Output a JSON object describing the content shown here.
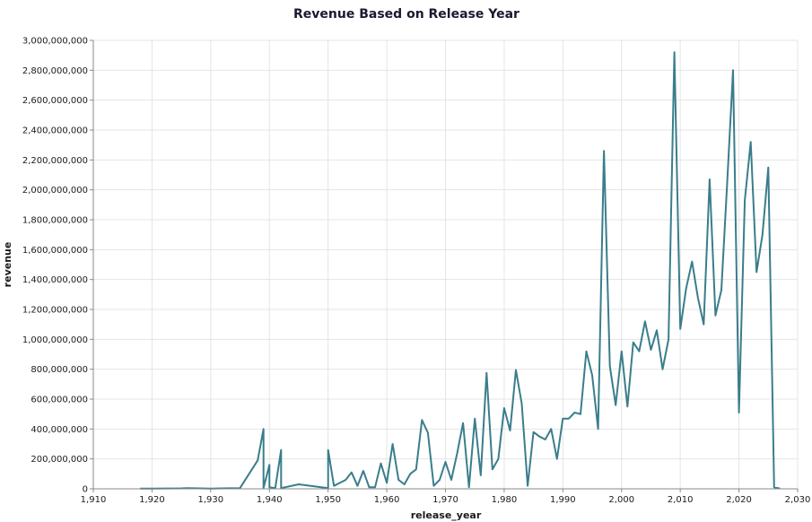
{
  "chart_data": {
    "type": "line",
    "title": "Revenue Based on Release Year",
    "xlabel": "release_year",
    "ylabel": "revenue",
    "xlim": [
      1910,
      2030
    ],
    "ylim": [
      0,
      3000000000
    ],
    "x_ticks": [
      "1,910",
      "1,920",
      "1,930",
      "1,940",
      "1,950",
      "1,960",
      "1,970",
      "1,980",
      "1,990",
      "2,000",
      "2,010",
      "2,020",
      "2,030"
    ],
    "y_ticks": [
      "0",
      "200,000,000",
      "400,000,000",
      "600,000,000",
      "800,000,000",
      "1,000,000,000",
      "1,200,000,000",
      "1,400,000,000",
      "1,600,000,000",
      "1,800,000,000",
      "2,000,000,000",
      "2,200,000,000",
      "2,400,000,000",
      "2,600,000,000",
      "2,800,000,000",
      "3,000,000,000"
    ],
    "grid": true,
    "line_color": "#3a7d8c",
    "series": [
      {
        "x": [
          1918,
          1920,
          1925,
          1926,
          1930,
          1935,
          1938,
          1939,
          1939,
          1940,
          1940,
          1941,
          1942,
          1942,
          1945,
          1950,
          1950,
          1951,
          1953,
          1954,
          1955,
          1956,
          1957,
          1958,
          1959,
          1960,
          1961,
          1962,
          1963,
          1964,
          1965,
          1966,
          1967,
          1968,
          1969,
          1970,
          1971,
          1972,
          1973,
          1974,
          1975,
          1976,
          1977,
          1978,
          1979,
          1980,
          1981,
          1982,
          1983,
          1984,
          1985,
          1986,
          1987,
          1988,
          1989,
          1990,
          1991,
          1992,
          1993,
          1994,
          1995,
          1996,
          1997,
          1998,
          1999,
          2000,
          2001,
          2002,
          2003,
          2004,
          2005,
          2006,
          2007,
          2008,
          2009,
          2010,
          2011,
          2012,
          2013,
          2014,
          2015,
          2016,
          2017,
          2018,
          2019,
          2020,
          2021,
          2022,
          2023,
          2024,
          2025,
          2026,
          2027
        ],
        "y": [
          2000000,
          1500000,
          3000000,
          5000000,
          2000000,
          5000000,
          190000000,
          400000000,
          5000000,
          160000000,
          10000000,
          5000000,
          260000000,
          5000000,
          30000000,
          5000000,
          260000000,
          20000000,
          60000000,
          110000000,
          20000000,
          120000000,
          10000000,
          10000000,
          170000000,
          40000000,
          300000000,
          60000000,
          30000000,
          100000000,
          130000000,
          460000000,
          375000000,
          20000000,
          60000000,
          180000000,
          60000000,
          240000000,
          440000000,
          10000000,
          470000000,
          90000000,
          775000000,
          130000000,
          200000000,
          540000000,
          390000000,
          795000000,
          570000000,
          20000000,
          380000000,
          350000000,
          330000000,
          400000000,
          200000000,
          470000000,
          470000000,
          510000000,
          500000000,
          920000000,
          760000000,
          400000000,
          2260000000,
          820000000,
          560000000,
          920000000,
          550000000,
          980000000,
          920000000,
          1120000000,
          930000000,
          1060000000,
          800000000,
          1000000000,
          2920000000,
          1070000000,
          1340000000,
          1520000000,
          1280000000,
          1100000000,
          2070000000,
          1160000000,
          1330000000,
          2050000000,
          2800000000,
          510000000,
          1930000000,
          2320000000,
          1450000000,
          1700000000,
          2150000000,
          10000000,
          2000000
        ]
      }
    ]
  }
}
